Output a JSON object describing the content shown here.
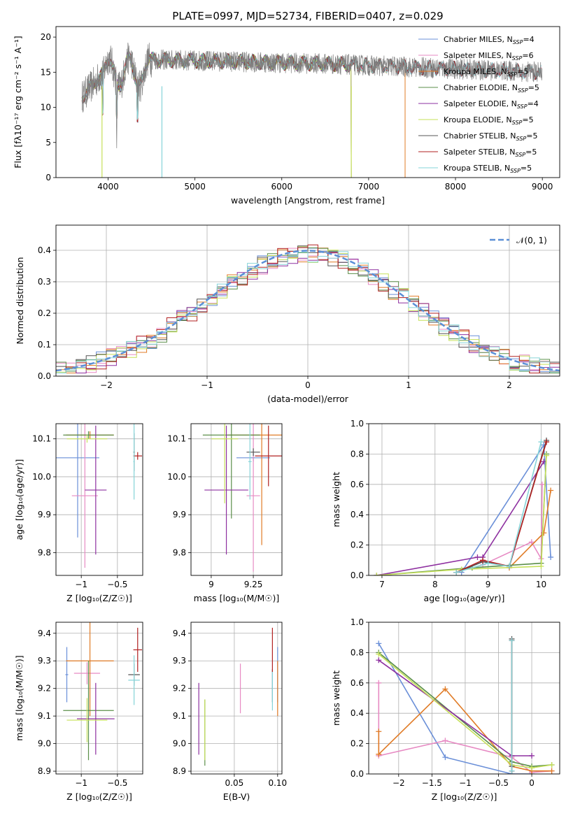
{
  "figure_title": "PLATE=0997, MJD=52734, FIBERID=0407, z=0.029",
  "colors": {
    "chabrier_miles": "#6a8fd8",
    "salpeter_miles": "#e78ac3",
    "kroupa_miles": "#e07b26",
    "chabrier_elodie": "#5b8f4a",
    "salpeter_elodie": "#8e30a0",
    "kroupa_elodie": "#c6e05a",
    "chabrier_stelib": "#555555",
    "salpeter_stelib": "#b22222",
    "kroupa_stelib": "#86d4d8",
    "normal": "#5b8fd6",
    "grid": "#b0b0b0"
  },
  "chart_data": [
    {
      "id": "spectrum",
      "type": "line",
      "title": "",
      "xlabel": "wavelength [Angstrom, rest frame]",
      "ylabel": "Flux [fλ10⁻¹⁷ erg cm⁻² s⁻¹ A⁻¹]",
      "xlim": [
        3400,
        9200
      ],
      "ylim": [
        0,
        21.5
      ],
      "xticks": [
        4000,
        5000,
        6000,
        7000,
        8000,
        9000
      ],
      "yticks": [
        0,
        5,
        10,
        15,
        20
      ],
      "legend_position": "top-right",
      "grid": false,
      "data_series": {
        "name": "",
        "x_range": [
          3700,
          9000
        ],
        "typical": 15.5,
        "noise": 1.5
      },
      "series": [
        {
          "key": "chabrier_miles",
          "name": "Chabrier MILES, N",
          "sub": "SSP",
          "suffix": "=4",
          "x_range": [
            3700,
            8990
          ]
        },
        {
          "key": "salpeter_miles",
          "name": "Salpeter MILES, N",
          "sub": "SSP",
          "suffix": "=6",
          "x_range": [
            3700,
            8990
          ]
        },
        {
          "key": "kroupa_miles",
          "name": "Kroupa MILES, N",
          "sub": "SSP",
          "suffix": "=5",
          "x_range": [
            3700,
            7420
          ]
        },
        {
          "key": "chabrier_elodie",
          "name": "Chabrier ELODIE, N",
          "sub": "SSP",
          "suffix": "=5",
          "x_range": [
            3700,
            6800
          ]
        },
        {
          "key": "salpeter_elodie",
          "name": "Salpeter ELODIE, N",
          "sub": "SSP",
          "suffix": "=4",
          "x_range": [
            3700,
            6800
          ]
        },
        {
          "key": "kroupa_elodie",
          "name": "Kroupa ELODIE, N",
          "sub": "SSP",
          "suffix": "=5",
          "x_range": [
            3700,
            6800
          ]
        },
        {
          "key": "chabrier_stelib",
          "name": "Chabrier STELIB, N",
          "sub": "SSP",
          "suffix": "=5",
          "x_range": [
            3700,
            8990
          ]
        },
        {
          "key": "salpeter_stelib",
          "name": "Salpeter STELIB, N",
          "sub": "SSP",
          "suffix": "=5",
          "x_range": [
            3700,
            8990
          ]
        },
        {
          "key": "kroupa_stelib",
          "name": "Kroupa STELIB, N",
          "sub": "SSP",
          "suffix": "=5",
          "x_range": [
            3700,
            8990
          ]
        }
      ]
    },
    {
      "id": "residuals",
      "type": "line",
      "title": "",
      "xlabel": "(data-model)/error",
      "ylabel": "Normed distribution",
      "xlim": [
        -2.5,
        2.5
      ],
      "ylim": [
        0,
        0.48
      ],
      "xticks": [
        -2,
        -1,
        0,
        1,
        2
      ],
      "yticks": [
        0.0,
        0.1,
        0.2,
        0.3,
        0.4
      ],
      "grid": true,
      "legend_position": "top-right",
      "normal_curve": {
        "name": "𝒩(0, 1)",
        "mean": 0,
        "sigma": 1
      },
      "bin_width": 0.1
    },
    {
      "id": "age_vs_Z",
      "type": "scatter",
      "xlabel": "Z [log₁₀(Z/Z☉)]",
      "ylabel": "age  [log₁₀(age/yr)]",
      "xlim": [
        -1.35,
        -0.15
      ],
      "ylim": [
        9.74,
        10.14
      ],
      "xticks": [
        -1.0,
        -0.5
      ],
      "yticks": [
        9.8,
        9.9,
        10.0,
        10.1
      ],
      "grid": true,
      "points": [
        {
          "key": "chabrier_miles",
          "x": -1.05,
          "xerr": 0.3,
          "y": 10.05,
          "yerr": 0.21
        },
        {
          "key": "salpeter_miles",
          "x": -0.95,
          "xerr": 0.18,
          "y": 9.95,
          "yerr": 0.19
        },
        {
          "key": "kroupa_miles",
          "x": -0.88,
          "xerr": 0.33,
          "y": 10.11,
          "yerr": 0.01
        },
        {
          "key": "chabrier_elodie",
          "x": -0.9,
          "xerr": 0.35,
          "y": 10.11,
          "yerr": 0.01
        },
        {
          "key": "salpeter_elodie",
          "x": -0.8,
          "xerr": 0.15,
          "y": 9.965,
          "yerr": 0.17
        },
        {
          "key": "kroupa_elodie",
          "x": -0.92,
          "xerr": 0.28,
          "y": 10.1,
          "yerr": 0.01
        },
        {
          "key": "chabrier_stelib",
          "x": -0.27,
          "xerr": 0.01,
          "y": 10.065,
          "yerr": 0.05
        },
        {
          "key": "salpeter_stelib",
          "x": -0.22,
          "xerr": 0.06,
          "y": 10.055,
          "yerr": 0.01
        },
        {
          "key": "kroupa_stelib",
          "x": -0.27,
          "xerr": 0.01,
          "y": 10.04,
          "yerr": 0.1
        }
      ]
    },
    {
      "id": "age_vs_mass",
      "type": "scatter",
      "xlabel": "mass [log₁₀(M/M☉)]",
      "ylabel": "",
      "xlim": [
        8.88,
        9.42
      ],
      "ylim": [
        9.74,
        10.14
      ],
      "xticks": [
        9.0,
        9.25
      ],
      "yticks": [
        9.8,
        9.9,
        10.0,
        10.1
      ],
      "grid": true,
      "points": [
        {
          "key": "chabrier_miles",
          "x": 9.25,
          "xerr": 0.1,
          "y": 10.05,
          "yerr": 0.01
        },
        {
          "key": "salpeter_miles",
          "x": 9.25,
          "xerr": 0.04,
          "y": 9.95,
          "yerr": 0.2
        },
        {
          "key": "kroupa_miles",
          "x": 9.3,
          "xerr": 0.2,
          "y": 10.11,
          "yerr": 0.29
        },
        {
          "key": "chabrier_elodie",
          "x": 9.12,
          "xerr": 0.17,
          "y": 10.11,
          "yerr": 0.22
        },
        {
          "key": "salpeter_elodie",
          "x": 9.09,
          "xerr": 0.13,
          "y": 9.965,
          "yerr": 0.17
        },
        {
          "key": "kroupa_elodie",
          "x": 9.08,
          "xerr": 0.08,
          "y": 10.1,
          "yerr": 0.17
        },
        {
          "key": "chabrier_stelib",
          "x": 9.25,
          "xerr": 0.04,
          "y": 10.065,
          "yerr": 0.01
        },
        {
          "key": "salpeter_stelib",
          "x": 9.34,
          "xerr": 0.08,
          "y": 10.055,
          "yerr": 0.08
        },
        {
          "key": "kroupa_stelib",
          "x": 9.23,
          "xerr": 0.01,
          "y": 10.04,
          "yerr": 0.1
        }
      ]
    },
    {
      "id": "weight_vs_age",
      "type": "line",
      "xlabel": "age  [log₁₀(age/yr)]",
      "ylabel": "mass weight",
      "xlim": [
        6.75,
        10.35
      ],
      "ylim": [
        0,
        1.0
      ],
      "xticks": [
        7,
        8,
        9,
        10
      ],
      "yticks": [
        0.0,
        0.2,
        0.4,
        0.6,
        0.8,
        1.0
      ],
      "grid": true,
      "series": [
        {
          "key": "chabrier_miles",
          "x": [
            8.5,
            10.05,
            10.18
          ],
          "y": [
            0.02,
            0.86,
            0.12
          ]
        },
        {
          "key": "salpeter_miles",
          "x": [
            8.9,
            9.82,
            10.0,
            10.02
          ],
          "y": [
            0.07,
            0.22,
            0.11,
            0.6
          ]
        },
        {
          "key": "kroupa_miles",
          "x": [
            9.4,
            10.05,
            10.18
          ],
          "y": [
            0.05,
            0.28,
            0.56
          ]
        },
        {
          "key": "chabrier_elodie",
          "x": [
            6.9,
            8.7,
            10.0,
            10.1
          ],
          "y": [
            0.0,
            0.05,
            0.08,
            0.8
          ]
        },
        {
          "key": "salpeter_elodie",
          "x": [
            6.9,
            8.8,
            8.9,
            10.05
          ],
          "y": [
            0.0,
            0.12,
            0.12,
            0.75
          ]
        },
        {
          "key": "kroupa_elodie",
          "x": [
            6.9,
            8.5,
            10.0,
            10.1
          ],
          "y": [
            0.0,
            0.04,
            0.06,
            0.79
          ]
        },
        {
          "key": "chabrier_stelib",
          "x": [
            8.4,
            8.9,
            9.4,
            10.1
          ],
          "y": [
            0.02,
            0.09,
            0.06,
            0.89
          ]
        },
        {
          "key": "salpeter_stelib",
          "x": [
            8.4,
            8.9,
            9.4,
            10.1
          ],
          "y": [
            0.02,
            0.1,
            0.06,
            0.88
          ]
        },
        {
          "key": "kroupa_stelib",
          "x": [
            8.4,
            9.0,
            9.4,
            10.0
          ],
          "y": [
            0.02,
            0.08,
            0.06,
            0.88
          ]
        }
      ]
    },
    {
      "id": "mass_vs_Z",
      "type": "scatter",
      "xlabel": "Z [log₁₀(Z/Z☉)]",
      "ylabel": "mass [log₁₀(M/M☉)]",
      "xlim": [
        -1.35,
        -0.15
      ],
      "ylim": [
        8.89,
        9.44
      ],
      "xticks": [
        -1.0,
        -0.5
      ],
      "yticks": [
        8.9,
        9.0,
        9.1,
        9.2,
        9.3,
        9.4
      ],
      "grid": true,
      "points": [
        {
          "key": "chabrier_miles",
          "x": -1.2,
          "xerr": 0.02,
          "y": 9.25,
          "yerr": 0.1
        },
        {
          "key": "salpeter_miles",
          "x": -0.92,
          "xerr": 0.18,
          "y": 9.255,
          "yerr": 0.04
        },
        {
          "key": "kroupa_miles",
          "x": -0.88,
          "xerr": 0.33,
          "y": 9.3,
          "yerr": 0.2
        },
        {
          "key": "chabrier_elodie",
          "x": -0.9,
          "xerr": 0.35,
          "y": 9.12,
          "yerr": 0.18
        },
        {
          "key": "salpeter_elodie",
          "x": -0.8,
          "xerr": 0.26,
          "y": 9.09,
          "yerr": 0.13
        },
        {
          "key": "kroupa_elodie",
          "x": -0.92,
          "xerr": 0.28,
          "y": 9.085,
          "yerr": 0.08
        },
        {
          "key": "chabrier_stelib",
          "x": -0.27,
          "xerr": 0.08,
          "y": 9.25,
          "yerr": 0.04
        },
        {
          "key": "salpeter_stelib",
          "x": -0.22,
          "xerr": 0.06,
          "y": 9.34,
          "yerr": 0.08
        },
        {
          "key": "kroupa_stelib",
          "x": -0.27,
          "xerr": 0.08,
          "y": 9.23,
          "yerr": 0.09
        }
      ]
    },
    {
      "id": "mass_vs_ebv",
      "type": "scatter",
      "xlabel": "E(B-V)",
      "ylabel": "",
      "xlim": [
        0.0,
        0.105
      ],
      "ylim": [
        8.89,
        9.44
      ],
      "xticks": [
        0.05,
        0.1
      ],
      "xtick_labels": [
        "0.05",
        "0.10"
      ],
      "yticks": [
        8.9,
        9.0,
        9.1,
        9.2,
        9.3,
        9.4
      ],
      "grid": true,
      "points": [
        {
          "key": "chabrier_miles",
          "x": 0.1,
          "xerr": 0,
          "y": 9.25,
          "yerr": 0.1
        },
        {
          "key": "salpeter_miles",
          "x": 0.057,
          "xerr": 0,
          "y": 9.2,
          "yerr": 0.09
        },
        {
          "key": "kroupa_miles",
          "x": 0.1,
          "xerr": 0,
          "y": 9.2,
          "yerr": 0.1
        },
        {
          "key": "chabrier_elodie",
          "x": 0.016,
          "xerr": 0,
          "y": 9.04,
          "yerr": 0.12
        },
        {
          "key": "salpeter_elodie",
          "x": 0.009,
          "xerr": 0,
          "y": 9.09,
          "yerr": 0.13
        },
        {
          "key": "kroupa_elodie",
          "x": 0.016,
          "xerr": 0,
          "y": 9.05,
          "yerr": 0.11
        },
        {
          "key": "chabrier_stelib",
          "x": 0.094,
          "xerr": 0,
          "y": 9.21,
          "yerr": 0.06
        },
        {
          "key": "salpeter_stelib",
          "x": 0.094,
          "xerr": 0,
          "y": 9.34,
          "yerr": 0.08
        },
        {
          "key": "kroupa_stelib",
          "x": 0.094,
          "xerr": 0,
          "y": 9.19,
          "yerr": 0.07
        }
      ]
    },
    {
      "id": "weight_vs_Z",
      "type": "line",
      "xlabel": "Z [log₁₀(Z/Z☉)]",
      "ylabel": "mass weight",
      "xlim": [
        -2.45,
        0.42
      ],
      "ylim": [
        0,
        1.0
      ],
      "xticks": [
        -2.0,
        -1.5,
        -1.0,
        -0.5,
        0.0
      ],
      "yticks": [
        0.0,
        0.2,
        0.4,
        0.6,
        0.8,
        1.0
      ],
      "grid": true,
      "series": [
        {
          "key": "chabrier_miles",
          "x": [
            -2.3,
            -1.3,
            -0.3,
            0.0
          ],
          "y": [
            0.86,
            0.11,
            0.0,
            0.0
          ]
        },
        {
          "key": "salpeter_miles",
          "x": [
            -2.3,
            -2.3,
            -1.3,
            -0.3,
            0.0,
            0.3
          ],
          "y": [
            0.6,
            0.12,
            0.22,
            0.11,
            0.01,
            0.02
          ]
        },
        {
          "key": "kroupa_miles",
          "x": [
            -2.3,
            -2.3,
            -1.3,
            -0.3,
            0.0,
            0.3
          ],
          "y": [
            0.28,
            0.13,
            0.56,
            0.05,
            0.02,
            0.02
          ]
        },
        {
          "key": "chabrier_elodie",
          "x": [
            -2.3,
            -0.3,
            0.0,
            0.3
          ],
          "y": [
            0.8,
            0.08,
            0.05,
            0.06
          ]
        },
        {
          "key": "salpeter_elodie",
          "x": [
            -2.3,
            -0.3,
            0.0
          ],
          "y": [
            0.75,
            0.12,
            0.12
          ]
        },
        {
          "key": "kroupa_elodie",
          "x": [
            -2.3,
            -0.3,
            0.0,
            0.3
          ],
          "y": [
            0.79,
            0.06,
            0.04,
            0.06
          ]
        },
        {
          "key": "chabrier_stelib",
          "x": [
            -0.3,
            -0.3,
            -0.3
          ],
          "y": [
            0.89,
            0.05,
            0.02
          ]
        },
        {
          "key": "salpeter_stelib",
          "x": [
            -0.3,
            -0.3
          ],
          "y": [
            0.88,
            0.02
          ]
        },
        {
          "key": "kroupa_stelib",
          "x": [
            -0.3,
            -0.3
          ],
          "y": [
            0.88,
            0.02
          ]
        }
      ]
    }
  ]
}
